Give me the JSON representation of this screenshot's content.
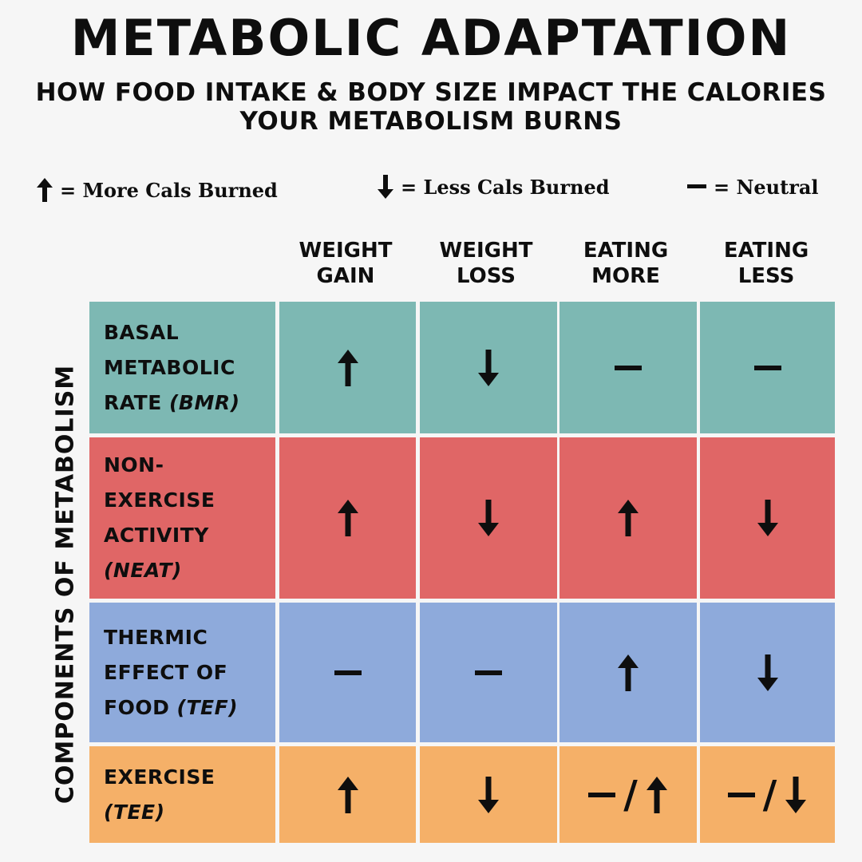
{
  "title": "METABOLIC ADAPTATION",
  "subtitle_line1": "HOW FOOD INTAKE & BODY SIZE IMPACT THE CALORIES",
  "subtitle_line2": "YOUR METABOLISM BURNS",
  "legend": [
    {
      "symbol": "up-arrow",
      "text": "= More Cals Burned"
    },
    {
      "symbol": "down-arrow",
      "text": "= Less Cals Burned"
    },
    {
      "symbol": "dash",
      "text": "= Neutral"
    }
  ],
  "side_label": "COMPONENTS OF METABOLISM",
  "columns": [
    {
      "line1": "WEIGHT",
      "line2": "GAIN"
    },
    {
      "line1": "WEIGHT",
      "line2": "LOSS"
    },
    {
      "line1": "EATING",
      "line2": "MORE"
    },
    {
      "line1": "EATING",
      "line2": "LESS"
    }
  ],
  "rows": [
    {
      "label": "BASAL\nMETABOLIC\nRATE ",
      "abbr": "(BMR)",
      "color": "#7db8b3",
      "values": [
        "up",
        "down",
        "neutral",
        "neutral"
      ]
    },
    {
      "label": "NON-\nEXERCISE\nACTIVITY\n",
      "abbr": "(NEAT)",
      "color": "#e06666",
      "values": [
        "up",
        "down",
        "up",
        "down"
      ]
    },
    {
      "label": "THERMIC\nEFFECT OF\nFOOD ",
      "abbr": "(TEF)",
      "color": "#8eaadb",
      "values": [
        "neutral",
        "neutral",
        "up",
        "down"
      ]
    },
    {
      "label": "EXERCISE\n",
      "abbr": "(TEE)",
      "color": "#f5b068",
      "values": [
        "up",
        "down",
        "neutral / up",
        "neutral / down"
      ]
    }
  ],
  "slash_text": "/"
}
